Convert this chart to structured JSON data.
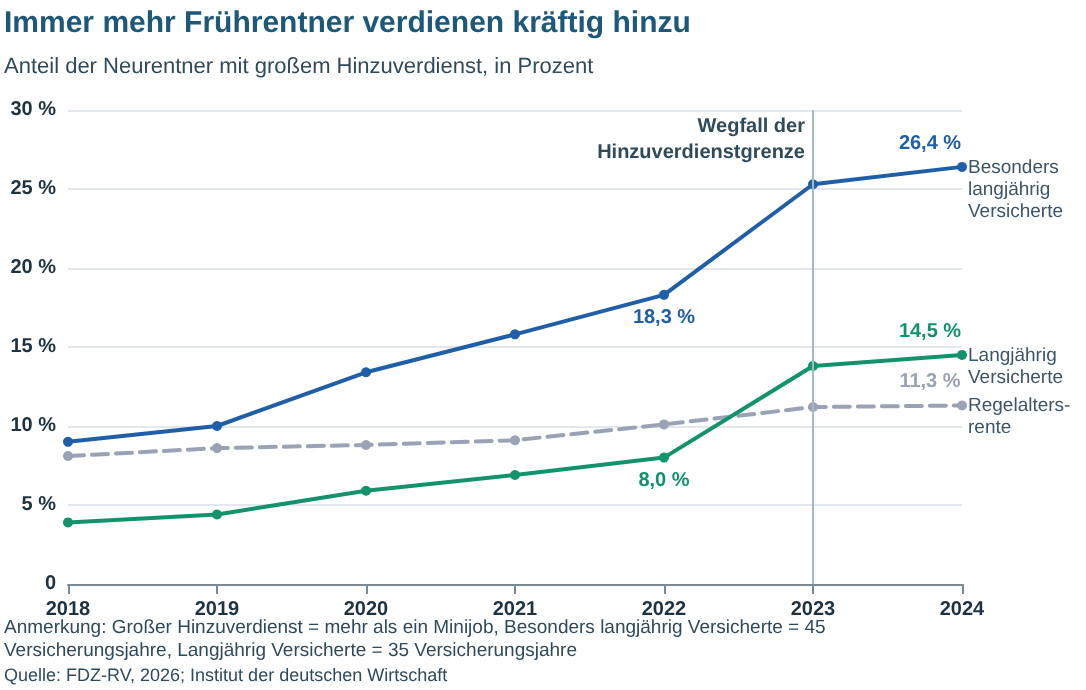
{
  "chart_data": {
    "type": "line",
    "title": "Immer mehr Frührentner verdienen kräftig hinzu",
    "subtitle": "Anteil der Neurentner mit großem Hinzuverdienst, in Prozent",
    "categories": [
      "2018",
      "2019",
      "2020",
      "2021",
      "2022",
      "2023",
      "2024"
    ],
    "series": [
      {
        "name": "Besonders langjährig Versicherte",
        "color": "#1f5fa8",
        "line_style": "solid",
        "values": [
          9.0,
          10.0,
          13.4,
          15.8,
          18.3,
          25.3,
          26.4
        ],
        "value_labels": [
          null,
          null,
          null,
          null,
          "18,3 %",
          null,
          "26,4 %"
        ]
      },
      {
        "name": "Langjährig Versicherte",
        "color": "#12936b",
        "line_style": "solid",
        "values": [
          3.9,
          4.4,
          5.9,
          6.9,
          8.0,
          13.8,
          14.5
        ],
        "value_labels": [
          null,
          null,
          null,
          null,
          "8,0 %",
          null,
          "14,5 %"
        ]
      },
      {
        "name": "Regelalters-rente",
        "color": "#9aa3b5",
        "line_style": "dashed",
        "values": [
          8.1,
          8.6,
          8.8,
          9.1,
          10.1,
          11.2,
          11.3
        ],
        "value_labels": [
          null,
          null,
          null,
          null,
          null,
          null,
          "11,3 %"
        ]
      }
    ],
    "ylim": [
      0,
      30
    ],
    "yticks": [
      0,
      {
        "value": 5,
        "label": "5 %"
      },
      {
        "value": 10,
        "label": "10 %"
      },
      {
        "value": 15,
        "label": "15 %"
      },
      {
        "value": 20,
        "label": "20 %"
      },
      {
        "value": 25,
        "label": "25 %"
      },
      {
        "value": 30,
        "label": "30 %"
      }
    ],
    "grid": "y",
    "legend": false,
    "marker": "circle",
    "ref_lines": [
      {
        "axis": "x",
        "value": "2023",
        "label": "Wegfall der Hinzuverdienstgrenze",
        "color": "#9fbcc4"
      }
    ],
    "annotations": [
      "Anmerkung: Großer Hinzuverdienst = mehr als ein Minijob, Besonders langjährig Versicherte = 45 Versicherungsjahre, Langjährig Versicherte = 35 Versicherungsjahre",
      "Quelle: FDZ-RV, 2026; Institut der deutschen Wirtschaft"
    ]
  }
}
